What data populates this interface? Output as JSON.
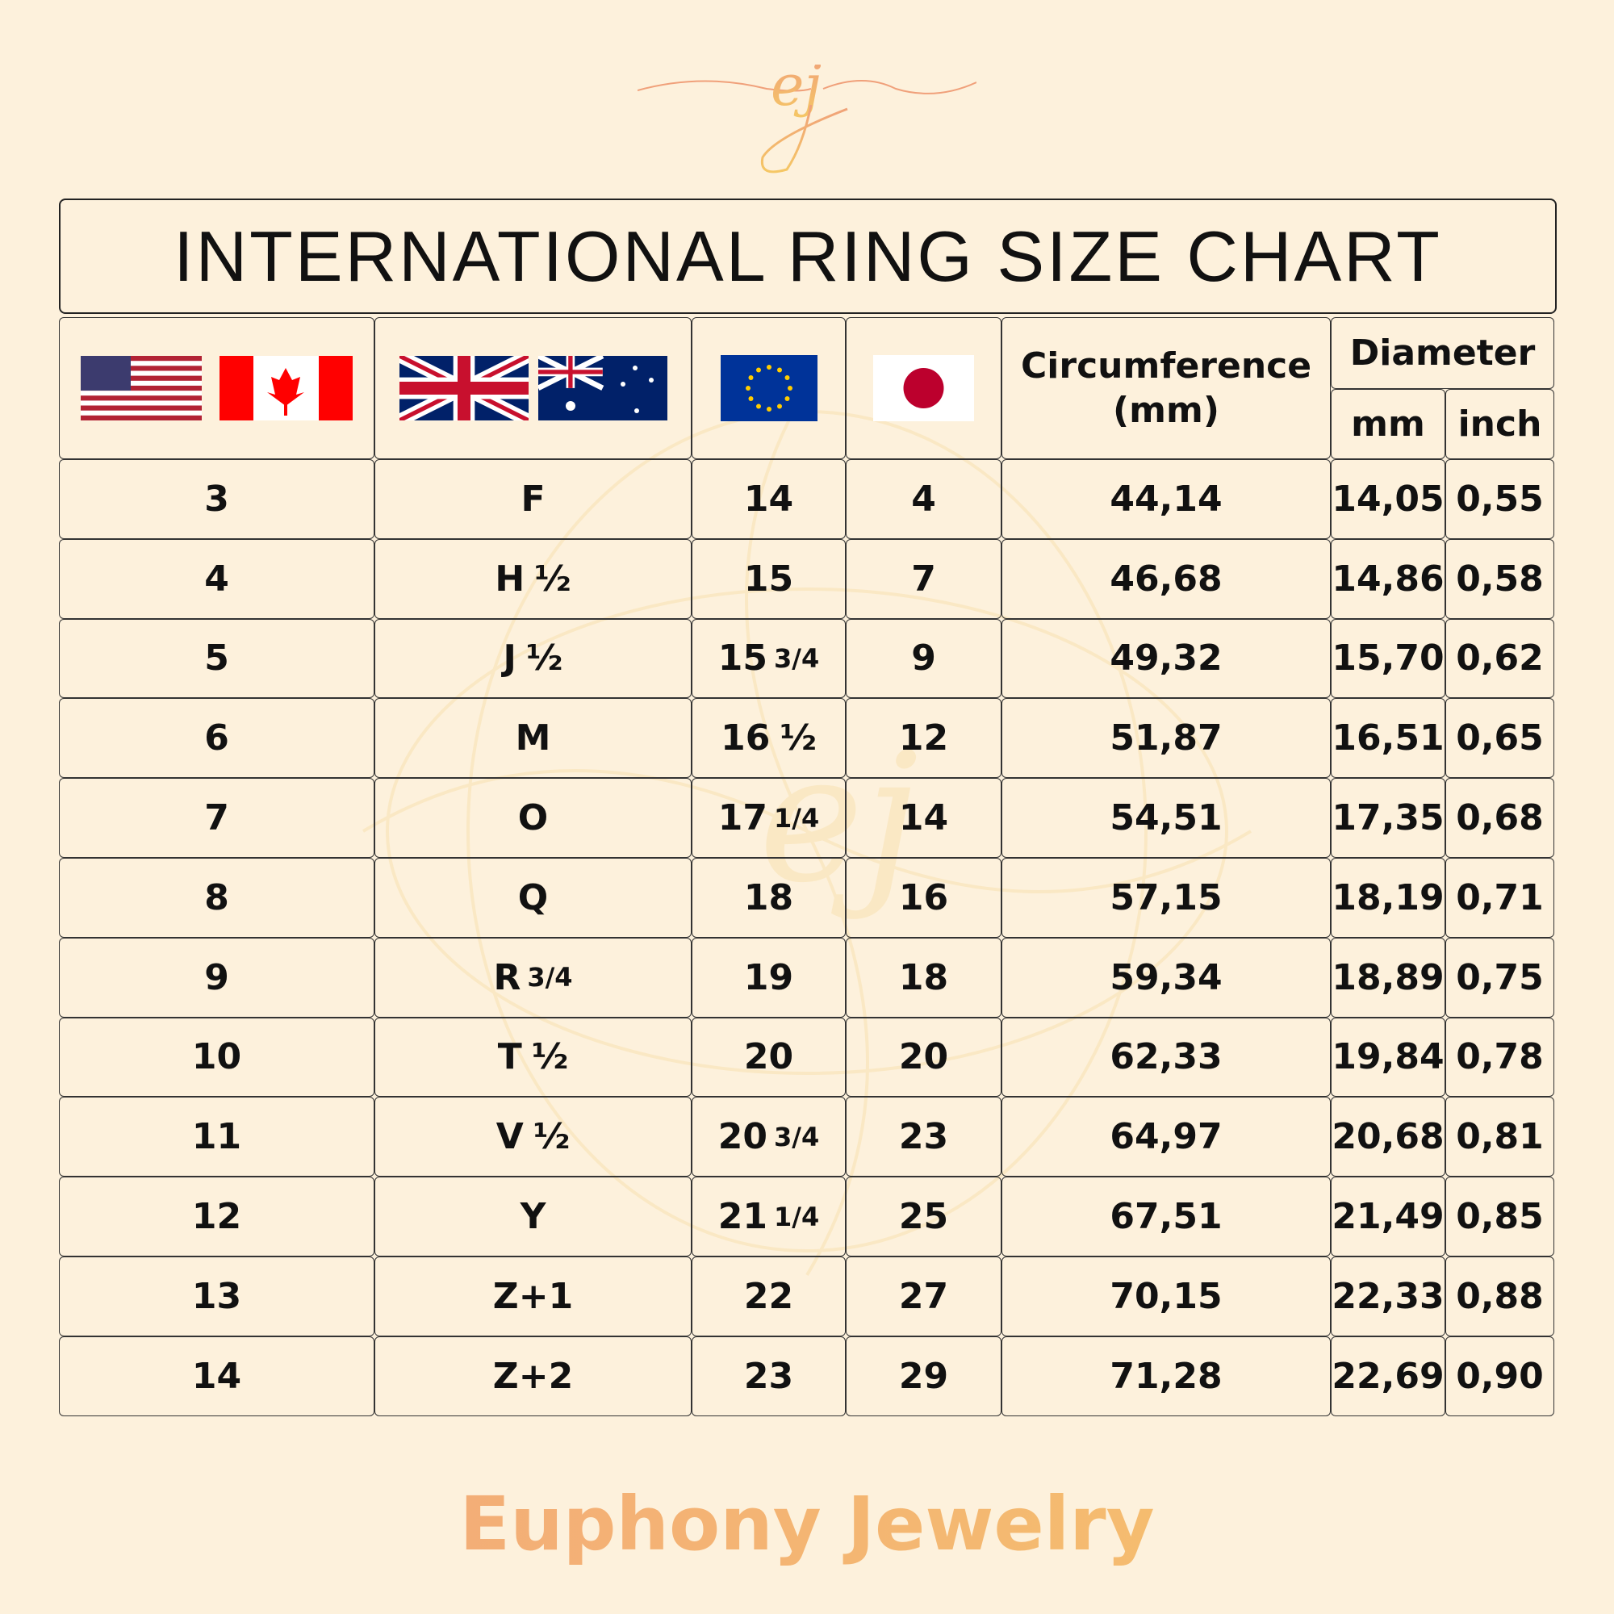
{
  "logo": {
    "text": "ej",
    "colors": [
      "#f0a07a",
      "#f5c765"
    ]
  },
  "title": "INTERNATIONAL RING SIZE CHART",
  "header": {
    "flags": [
      {
        "group": "us-ca",
        "icons": [
          "us-flag-icon",
          "canada-flag-icon"
        ]
      },
      {
        "group": "uk-au",
        "icons": [
          "uk-flag-icon",
          "australia-flag-icon"
        ]
      },
      {
        "group": "eu",
        "icons": [
          "eu-flag-icon"
        ]
      },
      {
        "group": "jp",
        "icons": [
          "japan-flag-icon"
        ]
      }
    ],
    "circumference": "Circumference (mm)",
    "diameter": "Diameter",
    "mm": "mm",
    "inch": "inch"
  },
  "rows": [
    [
      "3",
      "F",
      "14",
      "4",
      "44,14",
      "14,05",
      "0,55"
    ],
    [
      "4",
      "H ½",
      "15",
      "7",
      "46,68",
      "14,86",
      "0,58"
    ],
    [
      "5",
      "J ½",
      "15 3/4",
      "9",
      "49,32",
      "15,70",
      "0,62"
    ],
    [
      "6",
      "M",
      "16 ½",
      "12",
      "51,87",
      "16,51",
      "0,65"
    ],
    [
      "7",
      "O",
      "17 1/4",
      "14",
      "54,51",
      "17,35",
      "0,68"
    ],
    [
      "8",
      "Q",
      "18",
      "16",
      "57,15",
      "18,19",
      "0,71"
    ],
    [
      "9",
      "R 3/4",
      "19",
      "18",
      "59,34",
      "18,89",
      "0,75"
    ],
    [
      "10",
      "T ½",
      "20",
      "20",
      "62,33",
      "19,84",
      "0,78"
    ],
    [
      "11",
      "V ½",
      "20 3/4",
      "23",
      "64,97",
      "20,68",
      "0,81"
    ],
    [
      "12",
      "Y",
      "21 1/4",
      "25",
      "67,51",
      "21,49",
      "0,85"
    ],
    [
      "13",
      "Z+1",
      "22",
      "27",
      "70,15",
      "22,33",
      "0,88"
    ],
    [
      "14",
      "Z+2",
      "23",
      "29",
      "71,28",
      "22,69",
      "0,90"
    ]
  ],
  "footer": "Euphony Jewelry",
  "colors": {
    "background": "#fdf1dc",
    "brand_orange": "#f2a57c",
    "brand_gold": "#f6c56a"
  }
}
